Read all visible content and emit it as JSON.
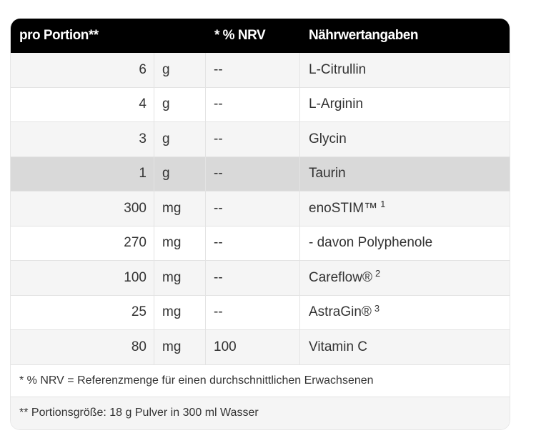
{
  "header": {
    "portion": "pro Portion**",
    "nrv": "* % NRV",
    "name": "Nährwertangaben"
  },
  "rows": [
    {
      "amount": "6",
      "unit": "g",
      "nrv": "--",
      "name": "L-Citrullin",
      "sup": ""
    },
    {
      "amount": "4",
      "unit": "g",
      "nrv": "--",
      "name": "L-Arginin",
      "sup": ""
    },
    {
      "amount": "3",
      "unit": "g",
      "nrv": "--",
      "name": "Glycin",
      "sup": ""
    },
    {
      "amount": "1",
      "unit": "g",
      "nrv": "--",
      "name": "Taurin",
      "sup": "",
      "highlighted": true
    },
    {
      "amount": "300",
      "unit": "mg",
      "nrv": "--",
      "name": "enoSTIM™",
      "sup": "1"
    },
    {
      "amount": "270",
      "unit": "mg",
      "nrv": "--",
      "name": "- davon Polyphenole",
      "sup": ""
    },
    {
      "amount": "100",
      "unit": "mg",
      "nrv": "--",
      "name": "Careflow®",
      "sup": "2"
    },
    {
      "amount": "25",
      "unit": "mg",
      "nrv": "--",
      "name": "AstraGin®",
      "sup": "3"
    },
    {
      "amount": "80",
      "unit": "mg",
      "nrv": "100",
      "name": "Vitamin C",
      "sup": ""
    }
  ],
  "footnotes": [
    "* % NRV = Referenzmenge für einen durchschnittlichen Erwachsenen",
    "** Portionsgröße: 18 g Pulver in 300 ml Wasser"
  ]
}
